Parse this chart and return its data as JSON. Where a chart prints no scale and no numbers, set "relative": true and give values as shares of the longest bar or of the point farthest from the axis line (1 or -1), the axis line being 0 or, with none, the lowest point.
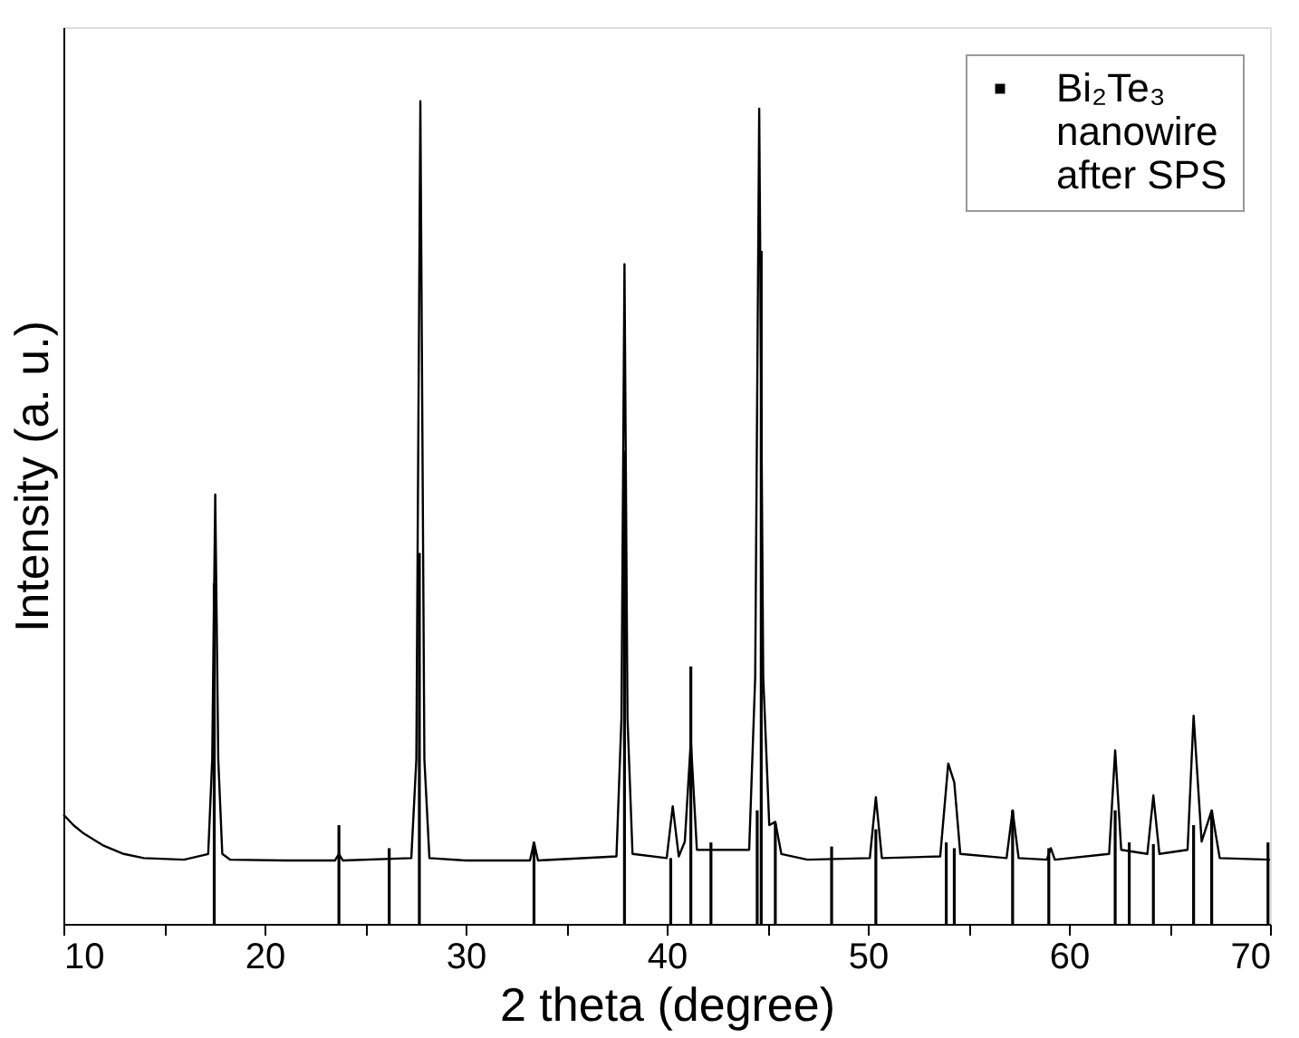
{
  "chart_data": {
    "type": "line",
    "xlabel": "2 theta (degree)",
    "ylabel": "Intensity (a. u.)",
    "relative": true,
    "xlim": [
      10,
      70
    ],
    "xticks": [
      10,
      {
        "value": 15,
        "label": null
      },
      20,
      {
        "value": 25,
        "label": null
      },
      30,
      {
        "value": 35,
        "label": null
      },
      40,
      {
        "value": 45,
        "label": null
      },
      50,
      {
        "value": 55,
        "label": null
      },
      60,
      {
        "value": 65,
        "label": null
      },
      70
    ],
    "grid": false,
    "legend": "top right",
    "marker": "none",
    "line_style": "solid",
    "series": [
      {
        "name": "Bi₂Te₃ nanowire after SPS",
        "color": "#000000",
        "x": [
          10,
          10.5,
          11,
          12,
          13,
          14,
          16,
          17.2,
          17.4,
          17.55,
          17.7,
          17.9,
          18.3,
          21,
          23.5,
          23.7,
          23.9,
          27.3,
          27.55,
          27.75,
          27.95,
          28.2,
          30,
          33.2,
          33.4,
          33.6,
          37.5,
          37.75,
          37.9,
          38.05,
          38.3,
          40.0,
          40.3,
          40.6,
          40.9,
          41.2,
          41.5,
          44.1,
          44.4,
          44.6,
          44.8,
          45.1,
          45.4,
          45.7,
          47,
          50.1,
          50.4,
          50.7,
          53.6,
          54.0,
          54.3,
          54.6,
          56.9,
          57.2,
          57.5,
          58.9,
          59.1,
          59.3,
          62.0,
          62.3,
          62.6,
          63.9,
          64.2,
          64.5,
          65.9,
          66.2,
          66.6,
          67.1,
          67.5,
          70
        ],
        "values": [
          0.133,
          0.12,
          0.11,
          0.095,
          0.085,
          0.08,
          0.078,
          0.085,
          0.2,
          0.522,
          0.2,
          0.085,
          0.078,
          0.077,
          0.077,
          0.085,
          0.077,
          0.08,
          0.2,
          1.0,
          0.2,
          0.08,
          0.077,
          0.077,
          0.099,
          0.077,
          0.082,
          0.25,
          0.802,
          0.25,
          0.085,
          0.08,
          0.143,
          0.082,
          0.1,
          0.223,
          0.09,
          0.09,
          0.3,
          0.991,
          0.3,
          0.12,
          0.124,
          0.085,
          0.078,
          0.08,
          0.154,
          0.08,
          0.082,
          0.195,
          0.172,
          0.085,
          0.08,
          0.138,
          0.08,
          0.078,
          0.092,
          0.078,
          0.085,
          0.211,
          0.09,
          0.085,
          0.156,
          0.085,
          0.09,
          0.253,
          0.1,
          0.138,
          0.08,
          0.078
        ]
      },
      {
        "color": "#000000",
        "type": "bar",
        "x": [
          17.5,
          23.7,
          26.2,
          27.7,
          33.4,
          37.9,
          40.2,
          41.2,
          42.2,
          44.5,
          44.7,
          45.4,
          48.2,
          50.4,
          53.9,
          54.3,
          57.2,
          59.0,
          62.3,
          63.0,
          64.2,
          66.2,
          67.1,
          69.9
        ],
        "values": [
          0.414,
          0.12,
          0.092,
          0.451,
          0.099,
          0.575,
          0.08,
          0.313,
          0.099,
          0.138,
          0.818,
          0.122,
          0.094,
          0.115,
          0.099,
          0.092,
          0.138,
          0.092,
          0.138,
          0.099,
          0.097,
          0.12,
          0.138,
          0.099
        ]
      }
    ]
  }
}
